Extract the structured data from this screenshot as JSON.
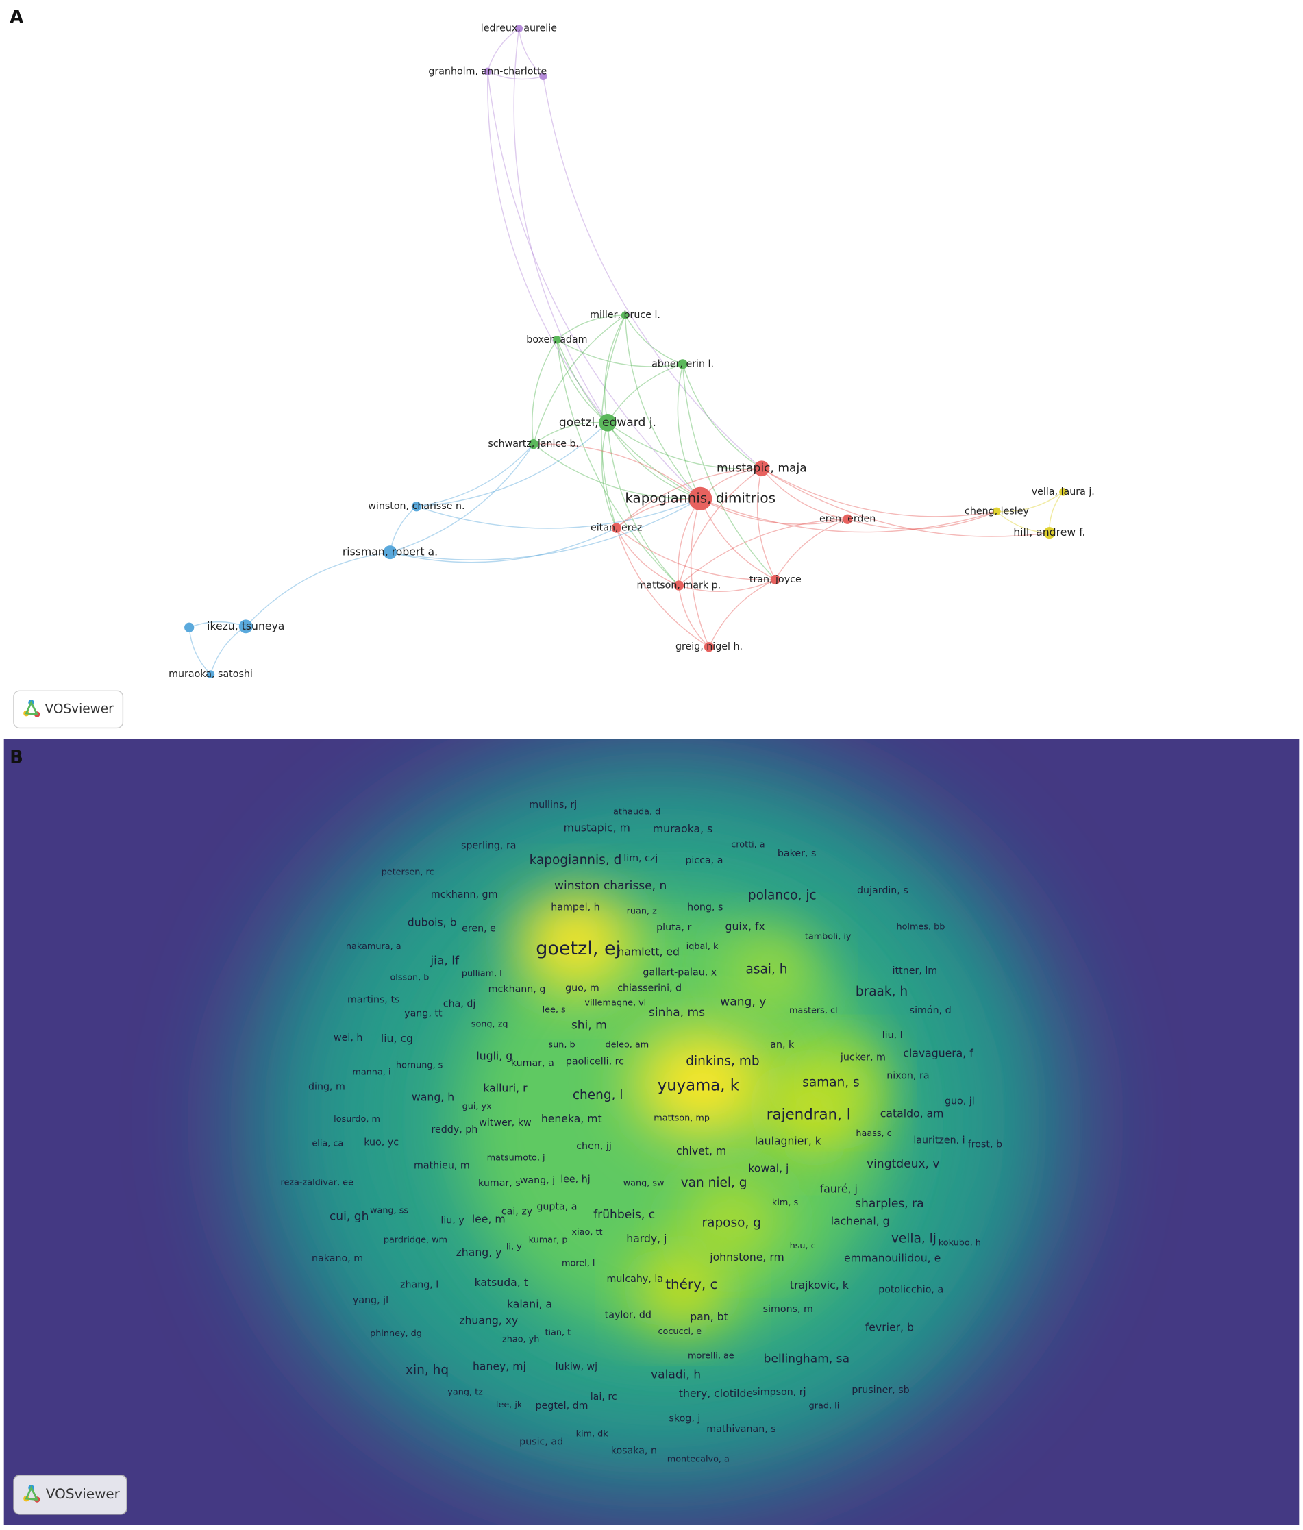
{
  "panel_a": {
    "letter": "A",
    "badge": "VOSviewer",
    "nodes": [
      {
        "label": "ledreux, aurelie"
      },
      {
        "label": "granholm, ann-charlotte"
      },
      {
        "label": "miller, bruce l."
      },
      {
        "label": "boxer, adam"
      },
      {
        "label": "abner, erin l."
      },
      {
        "label": "goetzl, edward j."
      },
      {
        "label": "schwartz, janice b."
      },
      {
        "label": "winston, charisse n."
      },
      {
        "label": "rissman, robert a."
      },
      {
        "label": "ikezu, tsuneya"
      },
      {
        "label": "muraoka, satoshi"
      },
      {
        "label": "mustapic, maja"
      },
      {
        "label": "kapogiannis, dimitrios"
      },
      {
        "label": "eitan, erez"
      },
      {
        "label": "eren, erden"
      },
      {
        "label": "mattson, mark p."
      },
      {
        "label": "tran, joyce"
      },
      {
        "label": "greig, nigel h."
      },
      {
        "label": "cheng, lesley"
      },
      {
        "label": "vella, laura j."
      },
      {
        "label": "hill, andrew f."
      }
    ]
  },
  "panel_b": {
    "letter": "B",
    "badge": "VOSviewer",
    "labels": [
      "mullins, rj",
      "athauda, d",
      "mustapic, m",
      "muraoka, s",
      "sperling, ra",
      "crotti, a",
      "baker, s",
      "kapogiannis, d",
      "lim, czj",
      "picca, a",
      "petersen, rc",
      "winston charisse, n",
      "dujardin, s",
      "mckhann, gm",
      "polanco, jc",
      "hong, s",
      "hampel, h",
      "ruan, z",
      "dubois, b",
      "eren, e",
      "pluta, r",
      "guix, fx",
      "holmes, bb",
      "tamboli, iy",
      "nakamura, a",
      "goetzl, ej",
      "hamlett, ed",
      "iqbal, k",
      "jia, lf",
      "olsson, b",
      "pulliam, l",
      "gallart-palau, x",
      "asai, h",
      "ittner, lm",
      "mckhann, g",
      "guo, m",
      "chiasserini, d",
      "braak, h",
      "martins, ts",
      "cha, dj",
      "villemagne, vl",
      "wang, y",
      "lee, s",
      "yang, tt",
      "masters, cl",
      "simón, d",
      "sinha, ms",
      "song, zq",
      "shi, m",
      "wei, h",
      "liu, cg",
      "liu, l",
      "sun, b",
      "deleo, am",
      "an, k",
      "clavaguera, f",
      "jucker, m",
      "lugli, g",
      "kumar, a",
      "paolicelli, rc",
      "dinkins, mb",
      "hornung, s",
      "manna, i",
      "nixon, ra",
      "ding, m",
      "kalluri, r",
      "yuyama, k",
      "saman, s",
      "cheng, l",
      "wang, h",
      "guo, jl",
      "gui, yx",
      "rajendran, l",
      "cataldo, am",
      "losurdo, m",
      "heneka, mt",
      "mattson, mp",
      "witwer, kw",
      "haass, c",
      "reddy, ph",
      "elia, ca",
      "kuo, yc",
      "laulagnier, k",
      "lauritzen, i",
      "frost, b",
      "chen, jj",
      "chivet, m",
      "matsumoto, j",
      "mathieu, m",
      "vingtdeux, v",
      "kowal, j",
      "lee, hj",
      "reza-zaldivar, ee",
      "kumar, s",
      "wang, j",
      "wang, sw",
      "van niel, g",
      "fauré, j",
      "kim, s",
      "sharples, ra",
      "cui, gh",
      "wang, ss",
      "gupta, a",
      "cai, zy",
      "frühbeis, c",
      "liu, y",
      "lee, m",
      "raposo, g",
      "lachenal, g",
      "xiao, tt",
      "pardridge, wm",
      "hardy, j",
      "vella, lj",
      "kokubo, h",
      "kumar, p",
      "li, y",
      "zhang, y",
      "hsu, c",
      "johnstone, rm",
      "nakano, m",
      "emmanouilidou, e",
      "morel, l",
      "mulcahy, la",
      "théry, c",
      "zhang, l",
      "katsuda, t",
      "trajkovic, k",
      "potolicchio, a",
      "yang, jl",
      "kalani, a",
      "simons, m",
      "taylor, dd",
      "pan, bt",
      "zhuang, xy",
      "fevrier, b",
      "phinney, dg",
      "tian, t",
      "cocucci, e",
      "zhao, yh",
      "morelli, ae",
      "bellingham, sa",
      "haney, mj",
      "lukiw, wj",
      "xin, hq",
      "valadi, h",
      "yang, tz",
      "prusiner, sb",
      "simpson, rj",
      "thery, clotilde",
      "lai, rc",
      "lee, jk",
      "pegtel, dm",
      "grad, li",
      "skog, j",
      "mathivanan, s",
      "kim, dk",
      "pusic, ad",
      "kosaka, n",
      "montecalvo, a"
    ]
  }
}
